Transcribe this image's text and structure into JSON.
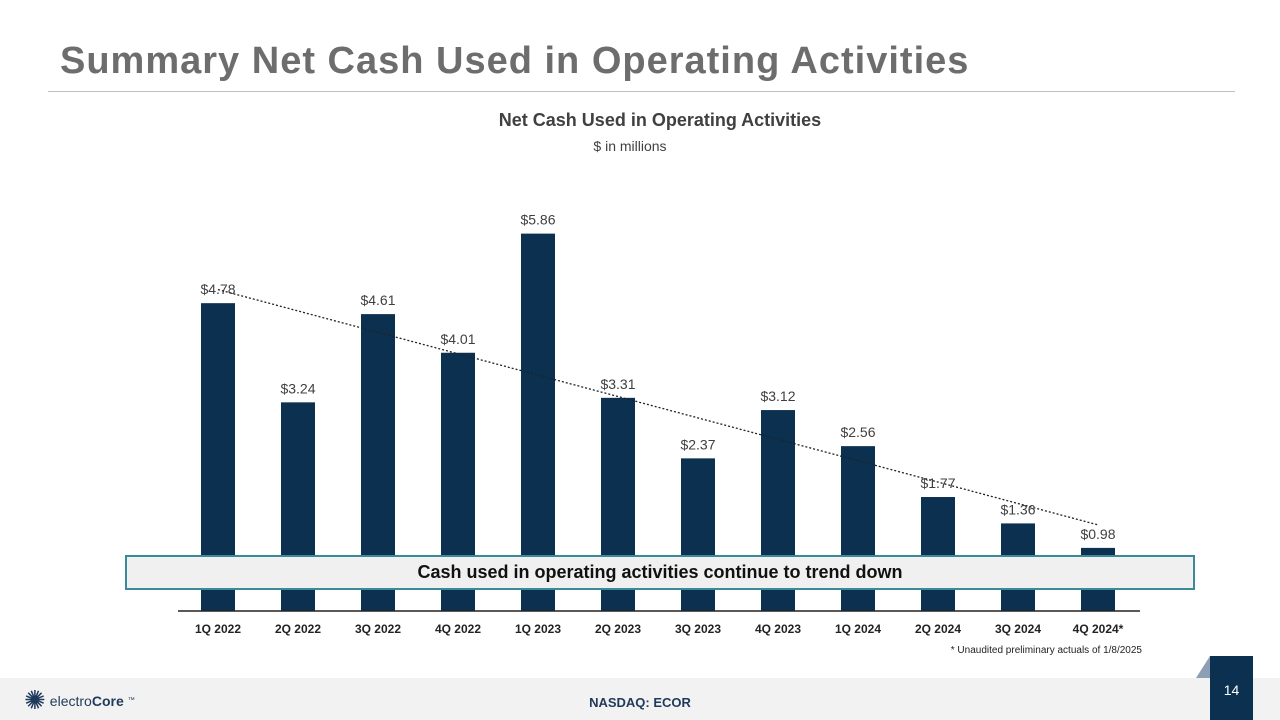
{
  "slide": {
    "title": "Summary Net Cash Used in Operating Activities",
    "callout": "Cash used in operating activities continue to trend down",
    "footnote": "* Unaudited preliminary actuals of 1/8/2025",
    "footer": "NASDAQ: ECOR",
    "page_number": "14",
    "logo": {
      "text_light": "electro",
      "text_bold": "Core",
      "tm": "™"
    }
  },
  "chart_data": {
    "type": "bar",
    "title": "Net Cash Used in Operating Activities",
    "subtitle": "$ in millions",
    "categories": [
      "1Q 2022",
      "2Q 2022",
      "3Q 2022",
      "4Q 2022",
      "1Q 2023",
      "2Q 2023",
      "3Q 2023",
      "4Q 2023",
      "1Q 2024",
      "2Q 2024",
      "3Q 2024",
      "4Q 2024*"
    ],
    "values": [
      4.78,
      3.24,
      4.61,
      4.01,
      5.86,
      3.31,
      2.37,
      3.12,
      2.56,
      1.77,
      1.36,
      0.98
    ],
    "labels": [
      "$4.78",
      "$3.24",
      "$4.61",
      "$4.01",
      "$5.86",
      "$3.31",
      "$2.37",
      "$3.12",
      "$2.56",
      "$1.77",
      "$1.36",
      "$0.98"
    ],
    "trendline": "linear, dotted",
    "bar_color": "#0b3050",
    "ylim": [
      0,
      6
    ]
  }
}
